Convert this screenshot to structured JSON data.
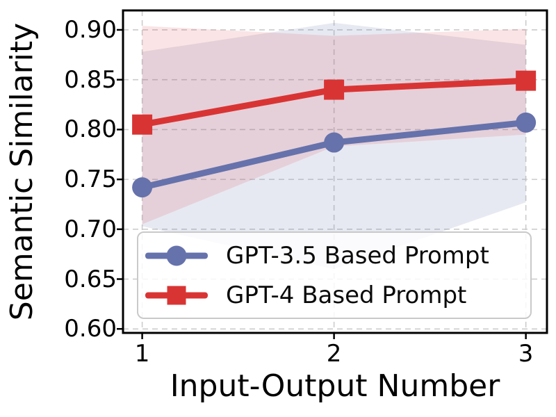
{
  "figure": {
    "background": "#ffffff",
    "spine_color": "#000000",
    "legend": {
      "items": [
        {
          "label": "GPT-3.5 Based Prompt",
          "marker": "circle",
          "color": "#6672ab"
        },
        {
          "label": "GPT-4 Based Prompt",
          "marker": "square",
          "color": "#d93434"
        }
      ]
    }
  },
  "chart_data": {
    "type": "line",
    "title": "",
    "xlabel": "Input-Output Number",
    "ylabel": "Semantic Similarity",
    "x": [
      1,
      2,
      3
    ],
    "xticks": [
      1,
      2,
      3
    ],
    "yticks": [
      0.6,
      0.65,
      0.7,
      0.75,
      0.8,
      0.85,
      0.9
    ],
    "xlim": [
      0.9,
      3.11
    ],
    "ylim": [
      0.596,
      0.9195
    ],
    "grid": true,
    "grid_color": "#cccccc",
    "grid_style": "dashed",
    "legend_position": "lower left inside",
    "series": [
      {
        "name": "GPT-3.5 Based Prompt",
        "color": "#6672ab",
        "marker": "circle",
        "values": [
          0.742,
          0.787,
          0.807
        ],
        "band_low": [
          0.703,
          0.66,
          0.727
        ],
        "band_high": [
          0.878,
          0.907,
          0.885
        ],
        "band_fill": "rgba(103,116,174,0.16)"
      },
      {
        "name": "GPT-4 Based Prompt",
        "color": "#d93434",
        "marker": "square",
        "values": [
          0.805,
          0.84,
          0.849
        ],
        "band_low": [
          0.705,
          0.783,
          0.795
        ],
        "band_high": [
          0.904,
          0.894,
          0.901
        ],
        "band_fill": "rgba(218,49,51,0.13)"
      }
    ]
  }
}
